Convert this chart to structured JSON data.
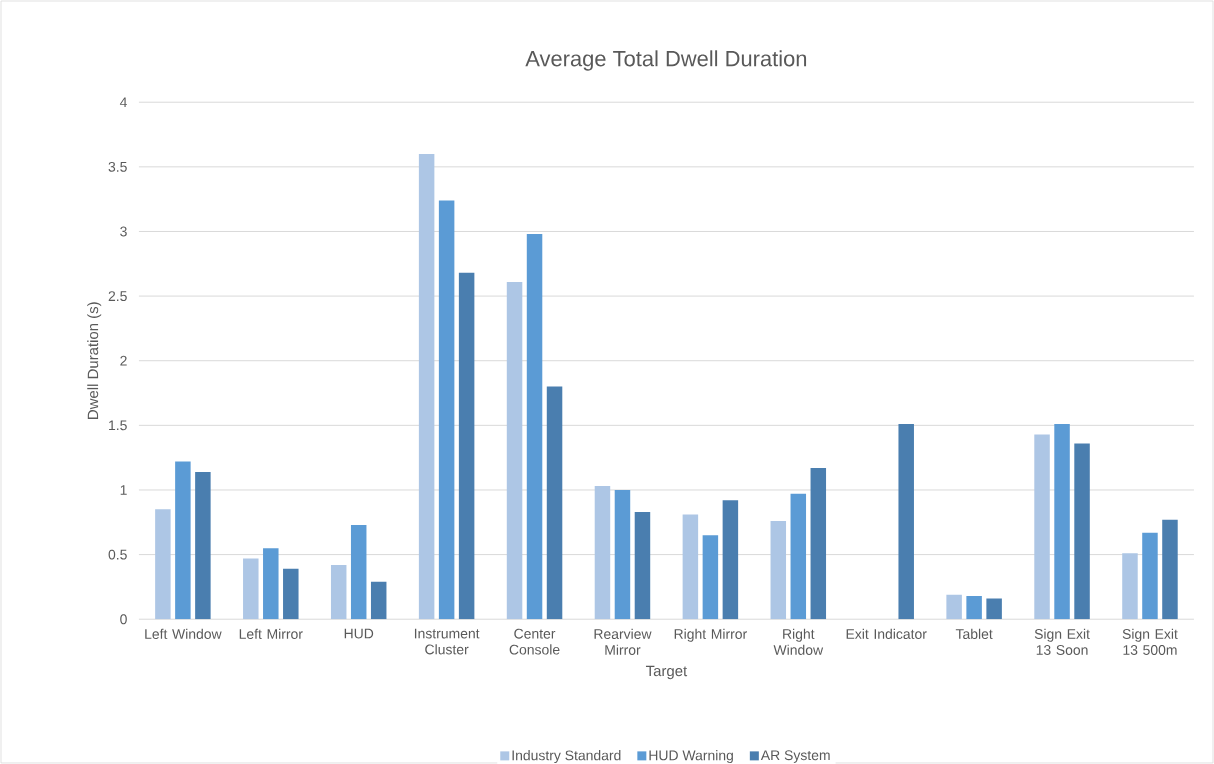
{
  "chart_data": {
    "type": "bar",
    "title": "Average Total Dwell Duration",
    "xlabel": "Target",
    "ylabel": "Dwell Duration (s)",
    "categories": [
      "Left Window",
      "Left Mirror",
      "HUD",
      "Instrument Cluster",
      "Center Console",
      "Rearview Mirror",
      "Right Mirror",
      "Right Window",
      "Exit Indicator",
      "Tablet",
      "Sign Exit 13 Soon",
      "Sign Exit 13 500m"
    ],
    "series": [
      {
        "name": "Industry Standard",
        "color": "#adc6e5",
        "values": [
          0.85,
          0.47,
          0.42,
          3.6,
          2.61,
          1.03,
          0.81,
          0.76,
          null,
          0.19,
          1.43,
          0.51
        ]
      },
      {
        "name": "HUD Warning",
        "color": "#5b9bd5",
        "values": [
          1.22,
          0.55,
          0.73,
          3.24,
          2.98,
          1.0,
          0.65,
          0.97,
          null,
          0.18,
          1.51,
          0.67
        ]
      },
      {
        "name": "AR System",
        "color": "#4a7eaf",
        "values": [
          1.14,
          0.39,
          0.29,
          2.68,
          1.8,
          0.83,
          0.92,
          1.17,
          1.51,
          0.16,
          1.36,
          0.77
        ]
      }
    ],
    "ylim": [
      0,
      4
    ],
    "yticks": [
      0,
      0.5,
      1,
      1.5,
      2,
      2.5,
      3,
      3.5,
      4
    ],
    "grid": "y",
    "legend": "bottom"
  }
}
